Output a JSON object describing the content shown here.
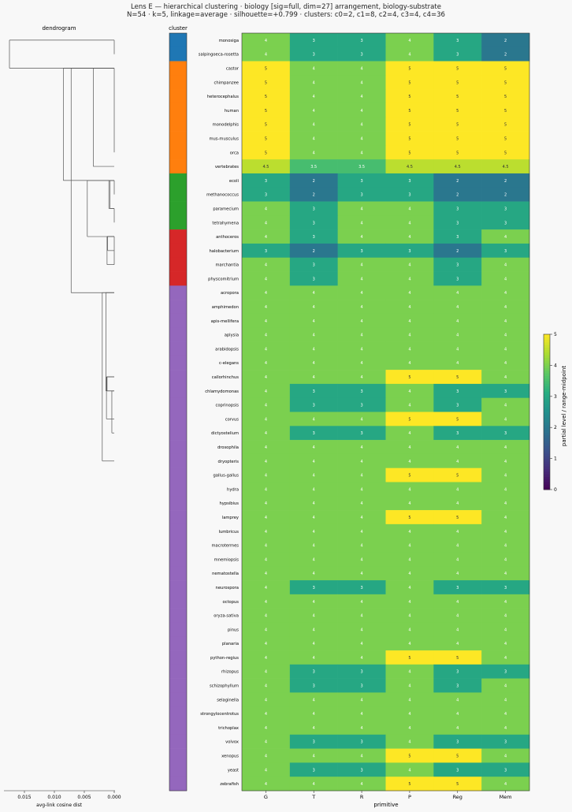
{
  "figure": {
    "title": "Lens E — hierarchical clustering · biology [sig=full, dim=27] arrangement, biology-substrate",
    "subtitle": "N=54 · k=5, linkage=average · silhouette=+0.799 · clusters: c0=2, c1=8, c2=4, c3=4, c4=36"
  },
  "chart_data": {
    "type": "heatmap",
    "dendrogram_label": "dendrogram",
    "cluster_label": "cluster",
    "xlabel": "primitive",
    "dendro_xlabel": "avg-link cosine dist",
    "dendro_ticks": [
      "0.015",
      "0.010",
      "0.005",
      "0.000"
    ],
    "colorbar_label": "partial level / range-midpoint",
    "colorbar_ticks": [
      "0",
      "1",
      "2",
      "3",
      "4",
      "5"
    ],
    "color_range": [
      0,
      5
    ],
    "columns": [
      "G",
      "T",
      "R",
      "P",
      "Reg",
      "Mem"
    ],
    "cluster_colors": {
      "c0": "#1f77b4",
      "c1": "#ff7f0e",
      "c2": "#2ca02c",
      "c3": "#d62728",
      "c4": "#9467bd"
    },
    "rows": [
      {
        "name": "monosiga",
        "cluster": "c0",
        "values": [
          4,
          3,
          3,
          4,
          3,
          2
        ]
      },
      {
        "name": "salpingoeca-rosetta",
        "cluster": "c0",
        "values": [
          4,
          3,
          3,
          4,
          3,
          2
        ]
      },
      {
        "name": "castor",
        "cluster": "c1",
        "values": [
          5,
          4,
          4,
          5,
          5,
          5
        ]
      },
      {
        "name": "chimpanzee",
        "cluster": "c1",
        "values": [
          5,
          4,
          4,
          5,
          5,
          5
        ]
      },
      {
        "name": "heterocephalus",
        "cluster": "c1",
        "values": [
          5,
          4,
          4,
          5,
          5,
          5
        ]
      },
      {
        "name": "human",
        "cluster": "c1",
        "values": [
          5,
          4,
          4,
          5,
          5,
          5
        ]
      },
      {
        "name": "monodelphis",
        "cluster": "c1",
        "values": [
          5,
          4,
          4,
          5,
          5,
          5
        ]
      },
      {
        "name": "mus-musculus",
        "cluster": "c1",
        "values": [
          5,
          4,
          4,
          5,
          5,
          5
        ]
      },
      {
        "name": "orca",
        "cluster": "c1",
        "values": [
          5,
          4,
          4,
          5,
          5,
          5
        ]
      },
      {
        "name": "vertebrates",
        "cluster": "c1",
        "values": [
          4.5,
          3.5,
          3.5,
          4.5,
          4.5,
          4.5
        ]
      },
      {
        "name": "ecoli",
        "cluster": "c2",
        "values": [
          3,
          2,
          3,
          3,
          2,
          2
        ]
      },
      {
        "name": "methanococcus",
        "cluster": "c2",
        "values": [
          3,
          2,
          3,
          3,
          2,
          2
        ]
      },
      {
        "name": "paramecium",
        "cluster": "c2",
        "values": [
          4,
          3,
          4,
          4,
          3,
          3
        ]
      },
      {
        "name": "tetrahymena",
        "cluster": "c2",
        "values": [
          4,
          3,
          4,
          4,
          3,
          3
        ]
      },
      {
        "name": "anthoceros",
        "cluster": "c3",
        "values": [
          4,
          3,
          4,
          4,
          3,
          4
        ]
      },
      {
        "name": "halobacterium",
        "cluster": "c3",
        "values": [
          3,
          2,
          3,
          3,
          2,
          3
        ]
      },
      {
        "name": "marchantia",
        "cluster": "c3",
        "values": [
          4,
          3,
          4,
          4,
          3,
          4
        ]
      },
      {
        "name": "physcomitrium",
        "cluster": "c3",
        "values": [
          4,
          3,
          4,
          4,
          3,
          4
        ]
      },
      {
        "name": "acropora",
        "cluster": "c4",
        "values": [
          4,
          4,
          4,
          4,
          4,
          4
        ]
      },
      {
        "name": "amphimedon",
        "cluster": "c4",
        "values": [
          4,
          4,
          4,
          4,
          4,
          4
        ]
      },
      {
        "name": "apis-mellifera",
        "cluster": "c4",
        "values": [
          4,
          4,
          4,
          4,
          4,
          4
        ]
      },
      {
        "name": "aplysia",
        "cluster": "c4",
        "values": [
          4,
          4,
          4,
          4,
          4,
          4
        ]
      },
      {
        "name": "arabidopsis",
        "cluster": "c4",
        "values": [
          4,
          4,
          4,
          4,
          4,
          4
        ]
      },
      {
        "name": "c-elegans",
        "cluster": "c4",
        "values": [
          4,
          4,
          4,
          4,
          4,
          4
        ]
      },
      {
        "name": "callorhinchus",
        "cluster": "c4",
        "values": [
          4,
          4,
          4,
          5,
          5,
          4
        ]
      },
      {
        "name": "chlamydomonas",
        "cluster": "c4",
        "values": [
          4,
          3,
          3,
          4,
          3,
          3
        ]
      },
      {
        "name": "coprinopsis",
        "cluster": "c4",
        "values": [
          4,
          3,
          3,
          4,
          3,
          4
        ]
      },
      {
        "name": "corvus",
        "cluster": "c4",
        "values": [
          4,
          4,
          4,
          5,
          5,
          4
        ]
      },
      {
        "name": "dictyostelium",
        "cluster": "c4",
        "values": [
          4,
          3,
          3,
          4,
          3,
          3
        ]
      },
      {
        "name": "drosophila",
        "cluster": "c4",
        "values": [
          4,
          4,
          4,
          4,
          4,
          4
        ]
      },
      {
        "name": "dryopteris",
        "cluster": "c4",
        "values": [
          4,
          4,
          4,
          4,
          4,
          4
        ]
      },
      {
        "name": "gallus-gallus",
        "cluster": "c4",
        "values": [
          4,
          4,
          4,
          5,
          5,
          4
        ]
      },
      {
        "name": "hydra",
        "cluster": "c4",
        "values": [
          4,
          4,
          4,
          4,
          4,
          4
        ]
      },
      {
        "name": "hypsibius",
        "cluster": "c4",
        "values": [
          4,
          4,
          4,
          4,
          4,
          4
        ]
      },
      {
        "name": "lamprey",
        "cluster": "c4",
        "values": [
          4,
          4,
          4,
          5,
          5,
          4
        ]
      },
      {
        "name": "lumbricus",
        "cluster": "c4",
        "values": [
          4,
          4,
          4,
          4,
          4,
          4
        ]
      },
      {
        "name": "macrotermes",
        "cluster": "c4",
        "values": [
          4,
          4,
          4,
          4,
          4,
          4
        ]
      },
      {
        "name": "mnemiopsis",
        "cluster": "c4",
        "values": [
          4,
          4,
          4,
          4,
          4,
          4
        ]
      },
      {
        "name": "nematostella",
        "cluster": "c4",
        "values": [
          4,
          4,
          4,
          4,
          4,
          4
        ]
      },
      {
        "name": "neurospora",
        "cluster": "c4",
        "values": [
          4,
          3,
          3,
          4,
          3,
          3
        ]
      },
      {
        "name": "octopus",
        "cluster": "c4",
        "values": [
          4,
          4,
          4,
          4,
          4,
          4
        ]
      },
      {
        "name": "oryza-sativa",
        "cluster": "c4",
        "values": [
          4,
          4,
          4,
          4,
          4,
          4
        ]
      },
      {
        "name": "pinus",
        "cluster": "c4",
        "values": [
          4,
          4,
          4,
          4,
          4,
          4
        ]
      },
      {
        "name": "planaria",
        "cluster": "c4",
        "values": [
          4,
          4,
          4,
          4,
          4,
          4
        ]
      },
      {
        "name": "python-regius",
        "cluster": "c4",
        "values": [
          4,
          4,
          4,
          5,
          5,
          4
        ]
      },
      {
        "name": "rhizopus",
        "cluster": "c4",
        "values": [
          4,
          3,
          3,
          4,
          3,
          3
        ]
      },
      {
        "name": "schizophyllum",
        "cluster": "c4",
        "values": [
          4,
          3,
          3,
          4,
          3,
          4
        ]
      },
      {
        "name": "selaginella",
        "cluster": "c4",
        "values": [
          4,
          4,
          4,
          4,
          4,
          4
        ]
      },
      {
        "name": "strongylocentrotus",
        "cluster": "c4",
        "values": [
          4,
          4,
          4,
          4,
          4,
          4
        ]
      },
      {
        "name": "trichoplax",
        "cluster": "c4",
        "values": [
          4,
          4,
          4,
          4,
          4,
          4
        ]
      },
      {
        "name": "volvox",
        "cluster": "c4",
        "values": [
          4,
          3,
          3,
          4,
          3,
          3
        ]
      },
      {
        "name": "xenopus",
        "cluster": "c4",
        "values": [
          4,
          4,
          4,
          5,
          5,
          4
        ]
      },
      {
        "name": "yeast",
        "cluster": "c4",
        "values": [
          4,
          3,
          3,
          4,
          3,
          3
        ]
      },
      {
        "name": "zebrafish",
        "cluster": "c4",
        "values": [
          4,
          4,
          4,
          5,
          5,
          4
        ]
      }
    ],
    "dendrogram_links": [
      {
        "rows": [
          0,
          1
        ],
        "height": 0.0
      },
      {
        "rows": [
          2,
          3,
          4,
          5,
          6,
          7,
          8
        ],
        "height": 0.0
      },
      {
        "rows": [
          2,
          9
        ],
        "height": 0.0035
      },
      {
        "rows": [
          10,
          11
        ],
        "height": 0.0
      },
      {
        "rows": [
          10,
          12
        ],
        "height": 0.0007
      },
      {
        "rows": [
          12,
          13
        ],
        "height": 0.0
      },
      {
        "rows": [
          10,
          12
        ],
        "height": 0.0009
      },
      {
        "rows": [
          14,
          16
        ],
        "height": 0.0
      },
      {
        "rows": [
          14,
          15
        ],
        "height": 0.0011
      },
      {
        "rows": [
          14,
          16
        ],
        "height": 0.0012
      },
      {
        "rows": [
          10,
          14
        ],
        "height": 0.0045
      },
      {
        "rows": [
          2,
          10
        ],
        "height": 0.0085
      },
      {
        "rows": [
          2,
          18
        ],
        "height": 0.0072
      },
      {
        "rows": [
          18,
          30
        ],
        "height": 0.002
      },
      {
        "rows": [
          24,
          27
        ],
        "height": 0.0013
      },
      {
        "rows": [
          25,
          28
        ],
        "height": 0.0004
      },
      {
        "rows": [
          25,
          24
        ],
        "height": 0.0012
      },
      {
        "rows": [
          18,
          25
        ],
        "height": 0.0014
      },
      {
        "rows": [
          0,
          2
        ],
        "height": 0.0175
      }
    ]
  }
}
